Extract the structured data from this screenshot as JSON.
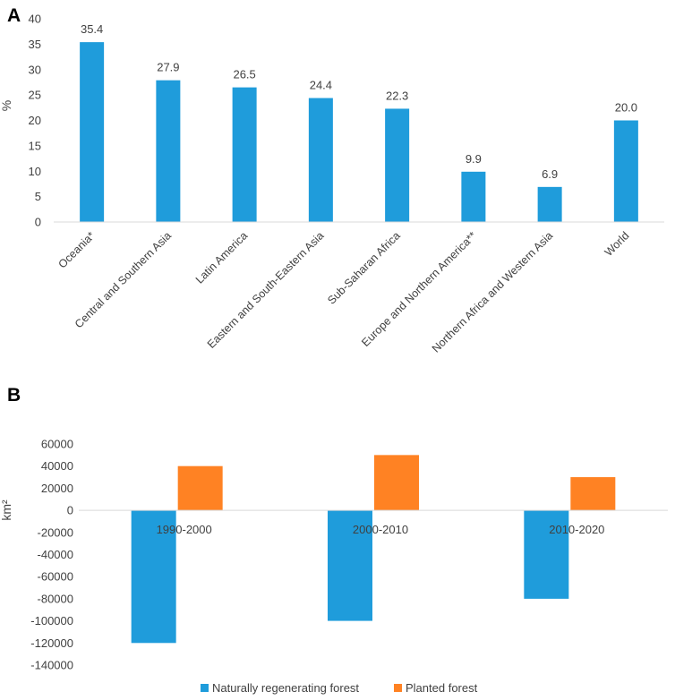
{
  "chart_data": [
    {
      "panel": "A",
      "type": "bar",
      "ylabel": "%",
      "ylim": [
        0,
        40
      ],
      "yticks": [
        0,
        5,
        10,
        15,
        20,
        25,
        30,
        35,
        40
      ],
      "categories": [
        "Oceania*",
        "Central and Southern Asia",
        "Latin America",
        "Eastern and South-Eastern Asia",
        "Sub-Saharan Africa",
        "Europe and Northern America**",
        "Northern Africa and Western Asia",
        "World"
      ],
      "values": [
        35.4,
        27.9,
        26.5,
        24.4,
        22.3,
        9.9,
        6.9,
        20.0
      ],
      "data_labels": [
        "35.4",
        "27.9",
        "26.5",
        "24.4",
        "22.3",
        "9.9",
        "6.9",
        "20.0"
      ],
      "color": "#1F9CDB"
    },
    {
      "panel": "B",
      "type": "bar",
      "ylabel": "km²",
      "ylim": [
        -140000,
        60000
      ],
      "yticks": [
        -140000,
        -120000,
        -100000,
        -80000,
        -60000,
        -40000,
        -20000,
        0,
        20000,
        40000,
        60000
      ],
      "categories": [
        "1990-2000",
        "2000-2010",
        "2010-2020"
      ],
      "series": [
        {
          "name": "Naturally regenerating forest",
          "values": [
            -120000,
            -100000,
            -80000
          ],
          "color": "#1F9CDB"
        },
        {
          "name": "Planted forest",
          "values": [
            40000,
            50000,
            30000
          ],
          "color": "#FF8223"
        }
      ],
      "legend": "bottom"
    }
  ]
}
